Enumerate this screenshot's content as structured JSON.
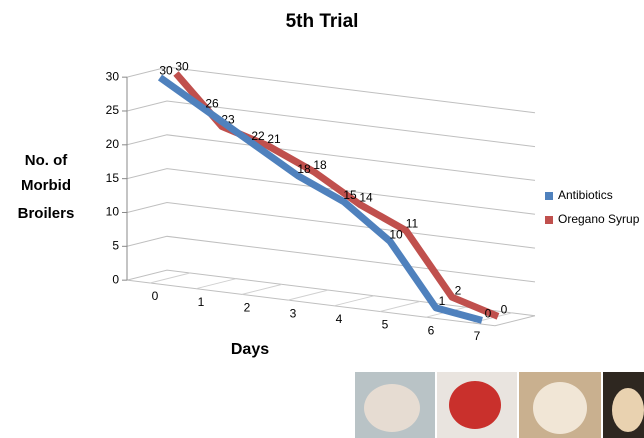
{
  "chart_data": {
    "type": "line",
    "title": "5th Trial",
    "y_label": [
      "No. of",
      "Morbid",
      "Broilers"
    ],
    "x_label": "Days",
    "categories": [
      "0",
      "1",
      "2",
      "3",
      "4",
      "5",
      "6",
      "7"
    ],
    "series": [
      {
        "name": "Antibiotics",
        "color": "#4f81bd",
        "values": [
          30,
          26,
          22,
          18,
          15,
          10,
          1,
          0
        ]
      },
      {
        "name": "Oregano Syrup",
        "color": "#c0504d",
        "values": [
          30,
          23,
          21,
          18,
          14,
          11,
          2,
          0
        ]
      }
    ],
    "ylim": [
      0,
      30
    ],
    "yticks": [
      0,
      5,
      10,
      15,
      20,
      25,
      30
    ],
    "grid": true,
    "legend": "right"
  }
}
